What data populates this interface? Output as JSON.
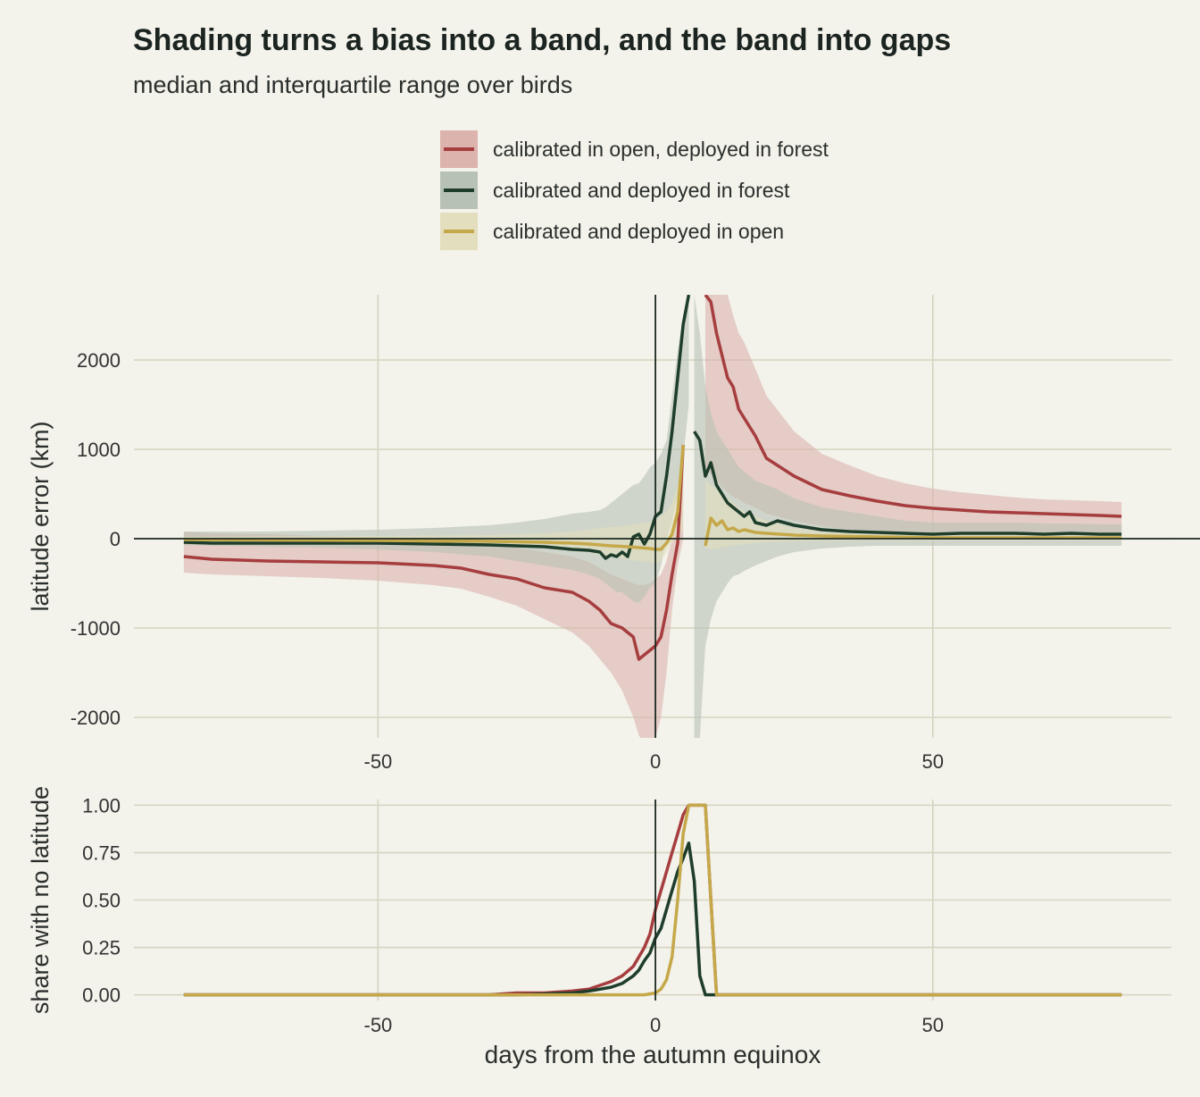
{
  "title": "Shading turns a bias into a band, and the band into gaps",
  "subtitle": "median and interquartile range over birds",
  "chart_data": [
    {
      "type": "area",
      "panel": "top",
      "ylabel": "latitude error (km)",
      "xlabel": "",
      "xlim": [
        -94,
        93
      ],
      "ylim": [
        -2230,
        2730
      ],
      "xticks": [
        -50,
        0,
        50
      ],
      "xtick_labels": [
        "-50",
        "0",
        "50"
      ],
      "yticks": [
        -2000,
        -1000,
        0,
        1000,
        2000
      ],
      "ytick_labels": [
        "-2000",
        "-1000",
        "0",
        "1000",
        "2000"
      ],
      "grid": true,
      "reference_lines": {
        "x": 0,
        "y": 0
      },
      "legend_position": "top",
      "series": [
        {
          "name": "calibrated in open, deployed in forest",
          "color": "#a63d3e",
          "band_color": "#dcb3ad",
          "segments": [
            {
              "x": [
                -85,
                -80,
                -70,
                -60,
                -50,
                -40,
                -35,
                -30,
                -25,
                -20,
                -15,
                -12,
                -10,
                -8,
                -6,
                -4,
                -3,
                -2,
                -1,
                0,
                1,
                2,
                3,
                4,
                5
              ],
              "median": [
                -200,
                -230,
                -250,
                -260,
                -270,
                -300,
                -330,
                -400,
                -450,
                -550,
                -600,
                -700,
                -800,
                -950,
                -1000,
                -1100,
                -1350,
                -1300,
                -1250,
                -1200,
                -1100,
                -800,
                -400,
                -50,
                1050
              ],
              "q1": [
                -380,
                -400,
                -420,
                -440,
                -470,
                -520,
                -560,
                -650,
                -750,
                -900,
                -1050,
                -1200,
                -1350,
                -1500,
                -1700,
                -2000,
                -2200,
                -2300,
                -2230,
                -2230,
                -2000,
                -1500,
                -800,
                -300,
                0
              ],
              "q3": [
                80,
                60,
                50,
                30,
                20,
                0,
                -20,
                -60,
                -100,
                -150,
                -200,
                -260,
                -330,
                -400,
                -450,
                -500,
                -520,
                -520,
                -500,
                -450,
                -400,
                -250,
                0,
                400,
                1000
              ]
            },
            {
              "x": [
                9,
                10,
                11,
                12,
                13,
                14,
                15,
                16,
                18,
                20,
                25,
                30,
                35,
                40,
                45,
                50,
                55,
                60,
                65,
                70,
                75,
                80,
                84
              ],
              "median": [
                2730,
                2650,
                2300,
                2050,
                1800,
                1700,
                1450,
                1350,
                1150,
                900,
                700,
                550,
                480,
                420,
                370,
                340,
                320,
                300,
                290,
                280,
                270,
                260,
                250
              ],
              "q1": [
                800,
                720,
                650,
                580,
                520,
                470,
                440,
                400,
                350,
                280,
                200,
                140,
                100,
                80,
                70,
                60,
                60,
                60,
                60,
                60,
                60,
                60,
                60
              ],
              "q3": [
                2730,
                2730,
                2730,
                2730,
                2730,
                2500,
                2300,
                2200,
                1900,
                1600,
                1200,
                950,
                820,
                700,
                620,
                560,
                520,
                490,
                460,
                440,
                430,
                420,
                410
              ]
            }
          ]
        },
        {
          "name": "calibrated and deployed in forest",
          "color": "#1e3d2a",
          "band_color": "#b7c2b4",
          "segments": [
            {
              "x": [
                -85,
                -80,
                -70,
                -60,
                -50,
                -40,
                -30,
                -25,
                -20,
                -15,
                -12,
                -10,
                -9,
                -8,
                -7,
                -6,
                -5,
                -4,
                -3,
                -2,
                -1,
                0,
                1,
                2,
                3,
                4,
                5,
                6
              ],
              "median": [
                -40,
                -50,
                -50,
                -50,
                -50,
                -60,
                -70,
                -80,
                -90,
                -120,
                -130,
                -150,
                -220,
                -180,
                -200,
                -150,
                -200,
                20,
                50,
                -60,
                50,
                250,
                300,
                700,
                1200,
                1800,
                2400,
                2730
              ],
              "q1": [
                -70,
                -80,
                -90,
                -100,
                -120,
                -150,
                -200,
                -250,
                -300,
                -350,
                -400,
                -450,
                -500,
                -550,
                -600,
                -600,
                -650,
                -700,
                -720,
                -650,
                -550,
                -500,
                -300,
                0,
                200,
                500,
                900,
                1500
              ],
              "q3": [
                80,
                80,
                80,
                90,
                100,
                120,
                150,
                180,
                220,
                280,
                300,
                320,
                350,
                400,
                450,
                500,
                550,
                600,
                620,
                700,
                800,
                850,
                950,
                1100,
                1600,
                2100,
                2500,
                2730
              ]
            },
            {
              "x": [
                7,
                8,
                9,
                10,
                11,
                12,
                13,
                14,
                15,
                16,
                17,
                18,
                20,
                22,
                25,
                30,
                35,
                40,
                45,
                50,
                55,
                60,
                65,
                70,
                75,
                80,
                84
              ],
              "median": [
                1200,
                1100,
                700,
                850,
                600,
                500,
                400,
                350,
                300,
                250,
                300,
                180,
                150,
                200,
                150,
                100,
                80,
                70,
                60,
                50,
                60,
                60,
                60,
                50,
                60,
                50,
                50
              ],
              "q1": [
                -2230,
                -2230,
                -1200,
                -900,
                -700,
                -600,
                -500,
                -420,
                -400,
                -360,
                -330,
                -300,
                -250,
                -200,
                -150,
                -110,
                -90,
                -80,
                -80,
                -80,
                -80,
                -80,
                -80,
                -80,
                -80,
                -80,
                -80
              ],
              "q3": [
                2730,
                2300,
                1700,
                1400,
                1200,
                1100,
                1000,
                900,
                800,
                750,
                700,
                650,
                600,
                550,
                450,
                350,
                300,
                250,
                200,
                180,
                180,
                180,
                180,
                170,
                170,
                160,
                160
              ]
            }
          ]
        },
        {
          "name": "calibrated and deployed in open",
          "color": "#c5a849",
          "band_color": "#e3dfbe",
          "segments": [
            {
              "x": [
                -85,
                -70,
                -50,
                -30,
                -20,
                -15,
                -12,
                -10,
                -8,
                -5,
                -3,
                -1,
                0,
                1,
                2,
                3,
                4,
                5
              ],
              "median": [
                -10,
                -15,
                -20,
                -30,
                -40,
                -50,
                -60,
                -70,
                -80,
                -90,
                -100,
                -110,
                -120,
                -120,
                -50,
                50,
                300,
                1050
              ],
              "q1": [
                -40,
                -50,
                -60,
                -80,
                -100,
                -120,
                -150,
                -180,
                -200,
                -230,
                -250,
                -260,
                -270,
                -250,
                -150,
                -50,
                50,
                100
              ],
              "q3": [
                20,
                25,
                30,
                40,
                60,
                80,
                100,
                120,
                130,
                150,
                170,
                190,
                200,
                250,
                300,
                400,
                600,
                900
              ]
            },
            {
              "x": [
                9,
                10,
                11,
                12,
                13,
                14,
                15,
                16,
                18,
                20,
                25,
                30,
                40,
                50,
                60,
                70,
                84
              ],
              "median": [
                -80,
                230,
                150,
                200,
                100,
                120,
                80,
                100,
                70,
                60,
                40,
                30,
                20,
                10,
                10,
                10,
                10
              ],
              "q1": [
                -100,
                -120,
                -110,
                -100,
                -90,
                -80,
                -70,
                -60,
                -50,
                -40,
                -30,
                -25,
                -20,
                -20,
                -20,
                -20,
                -20
              ],
              "q3": [
                650,
                600,
                550,
                500,
                450,
                400,
                350,
                300,
                250,
                200,
                120,
                80,
                60,
                50,
                50,
                50,
                50
              ]
            }
          ]
        }
      ]
    },
    {
      "type": "line",
      "panel": "bottom",
      "ylabel": "share with no latitude",
      "xlabel": "days from the autumn equinox",
      "xlim": [
        -94,
        93
      ],
      "ylim": [
        -0.03,
        1.03
      ],
      "xticks": [
        -50,
        0,
        50
      ],
      "xtick_labels": [
        "-50",
        "0",
        "50"
      ],
      "yticks": [
        0,
        0.25,
        0.5,
        0.75,
        1.0
      ],
      "ytick_labels": [
        "0.00",
        "0.25",
        "0.50",
        "0.75",
        "1.00"
      ],
      "grid": true,
      "reference_lines": {
        "x": 0
      },
      "series": [
        {
          "name": "calibrated in open, deployed in forest",
          "color": "#a63d3e",
          "x": [
            -85,
            -30,
            -25,
            -20,
            -15,
            -12,
            -10,
            -8,
            -6,
            -4,
            -3,
            -2,
            -1,
            0,
            1,
            2,
            3,
            4,
            5,
            6,
            7,
            8,
            9,
            10,
            11,
            84
          ],
          "values": [
            0,
            0,
            0.01,
            0.01,
            0.02,
            0.03,
            0.05,
            0.07,
            0.1,
            0.15,
            0.2,
            0.25,
            0.32,
            0.45,
            0.55,
            0.65,
            0.75,
            0.85,
            0.95,
            1.0,
            1.0,
            1.0,
            1.0,
            0.5,
            0,
            0
          ]
        },
        {
          "name": "calibrated and deployed in forest",
          "color": "#1e3d2a",
          "x": [
            -85,
            -25,
            -20,
            -15,
            -12,
            -10,
            -8,
            -6,
            -4,
            -3,
            -2,
            -1,
            0,
            1,
            2,
            3,
            4,
            5,
            6,
            7,
            8,
            9,
            10,
            84
          ],
          "values": [
            0,
            0,
            0.005,
            0.01,
            0.02,
            0.03,
            0.04,
            0.06,
            0.1,
            0.13,
            0.18,
            0.22,
            0.3,
            0.35,
            0.45,
            0.55,
            0.65,
            0.72,
            0.8,
            0.6,
            0.1,
            0,
            0,
            0
          ]
        },
        {
          "name": "calibrated and deployed in open",
          "color": "#c5a849",
          "x": [
            -85,
            -5,
            -2,
            0,
            1,
            2,
            3,
            4,
            5,
            6,
            7,
            8,
            9,
            10,
            11,
            84
          ],
          "values": [
            0,
            0,
            0,
            0.01,
            0.03,
            0.08,
            0.2,
            0.5,
            0.85,
            1.0,
            1.0,
            1.0,
            1.0,
            0.5,
            0,
            0
          ]
        }
      ]
    }
  ]
}
